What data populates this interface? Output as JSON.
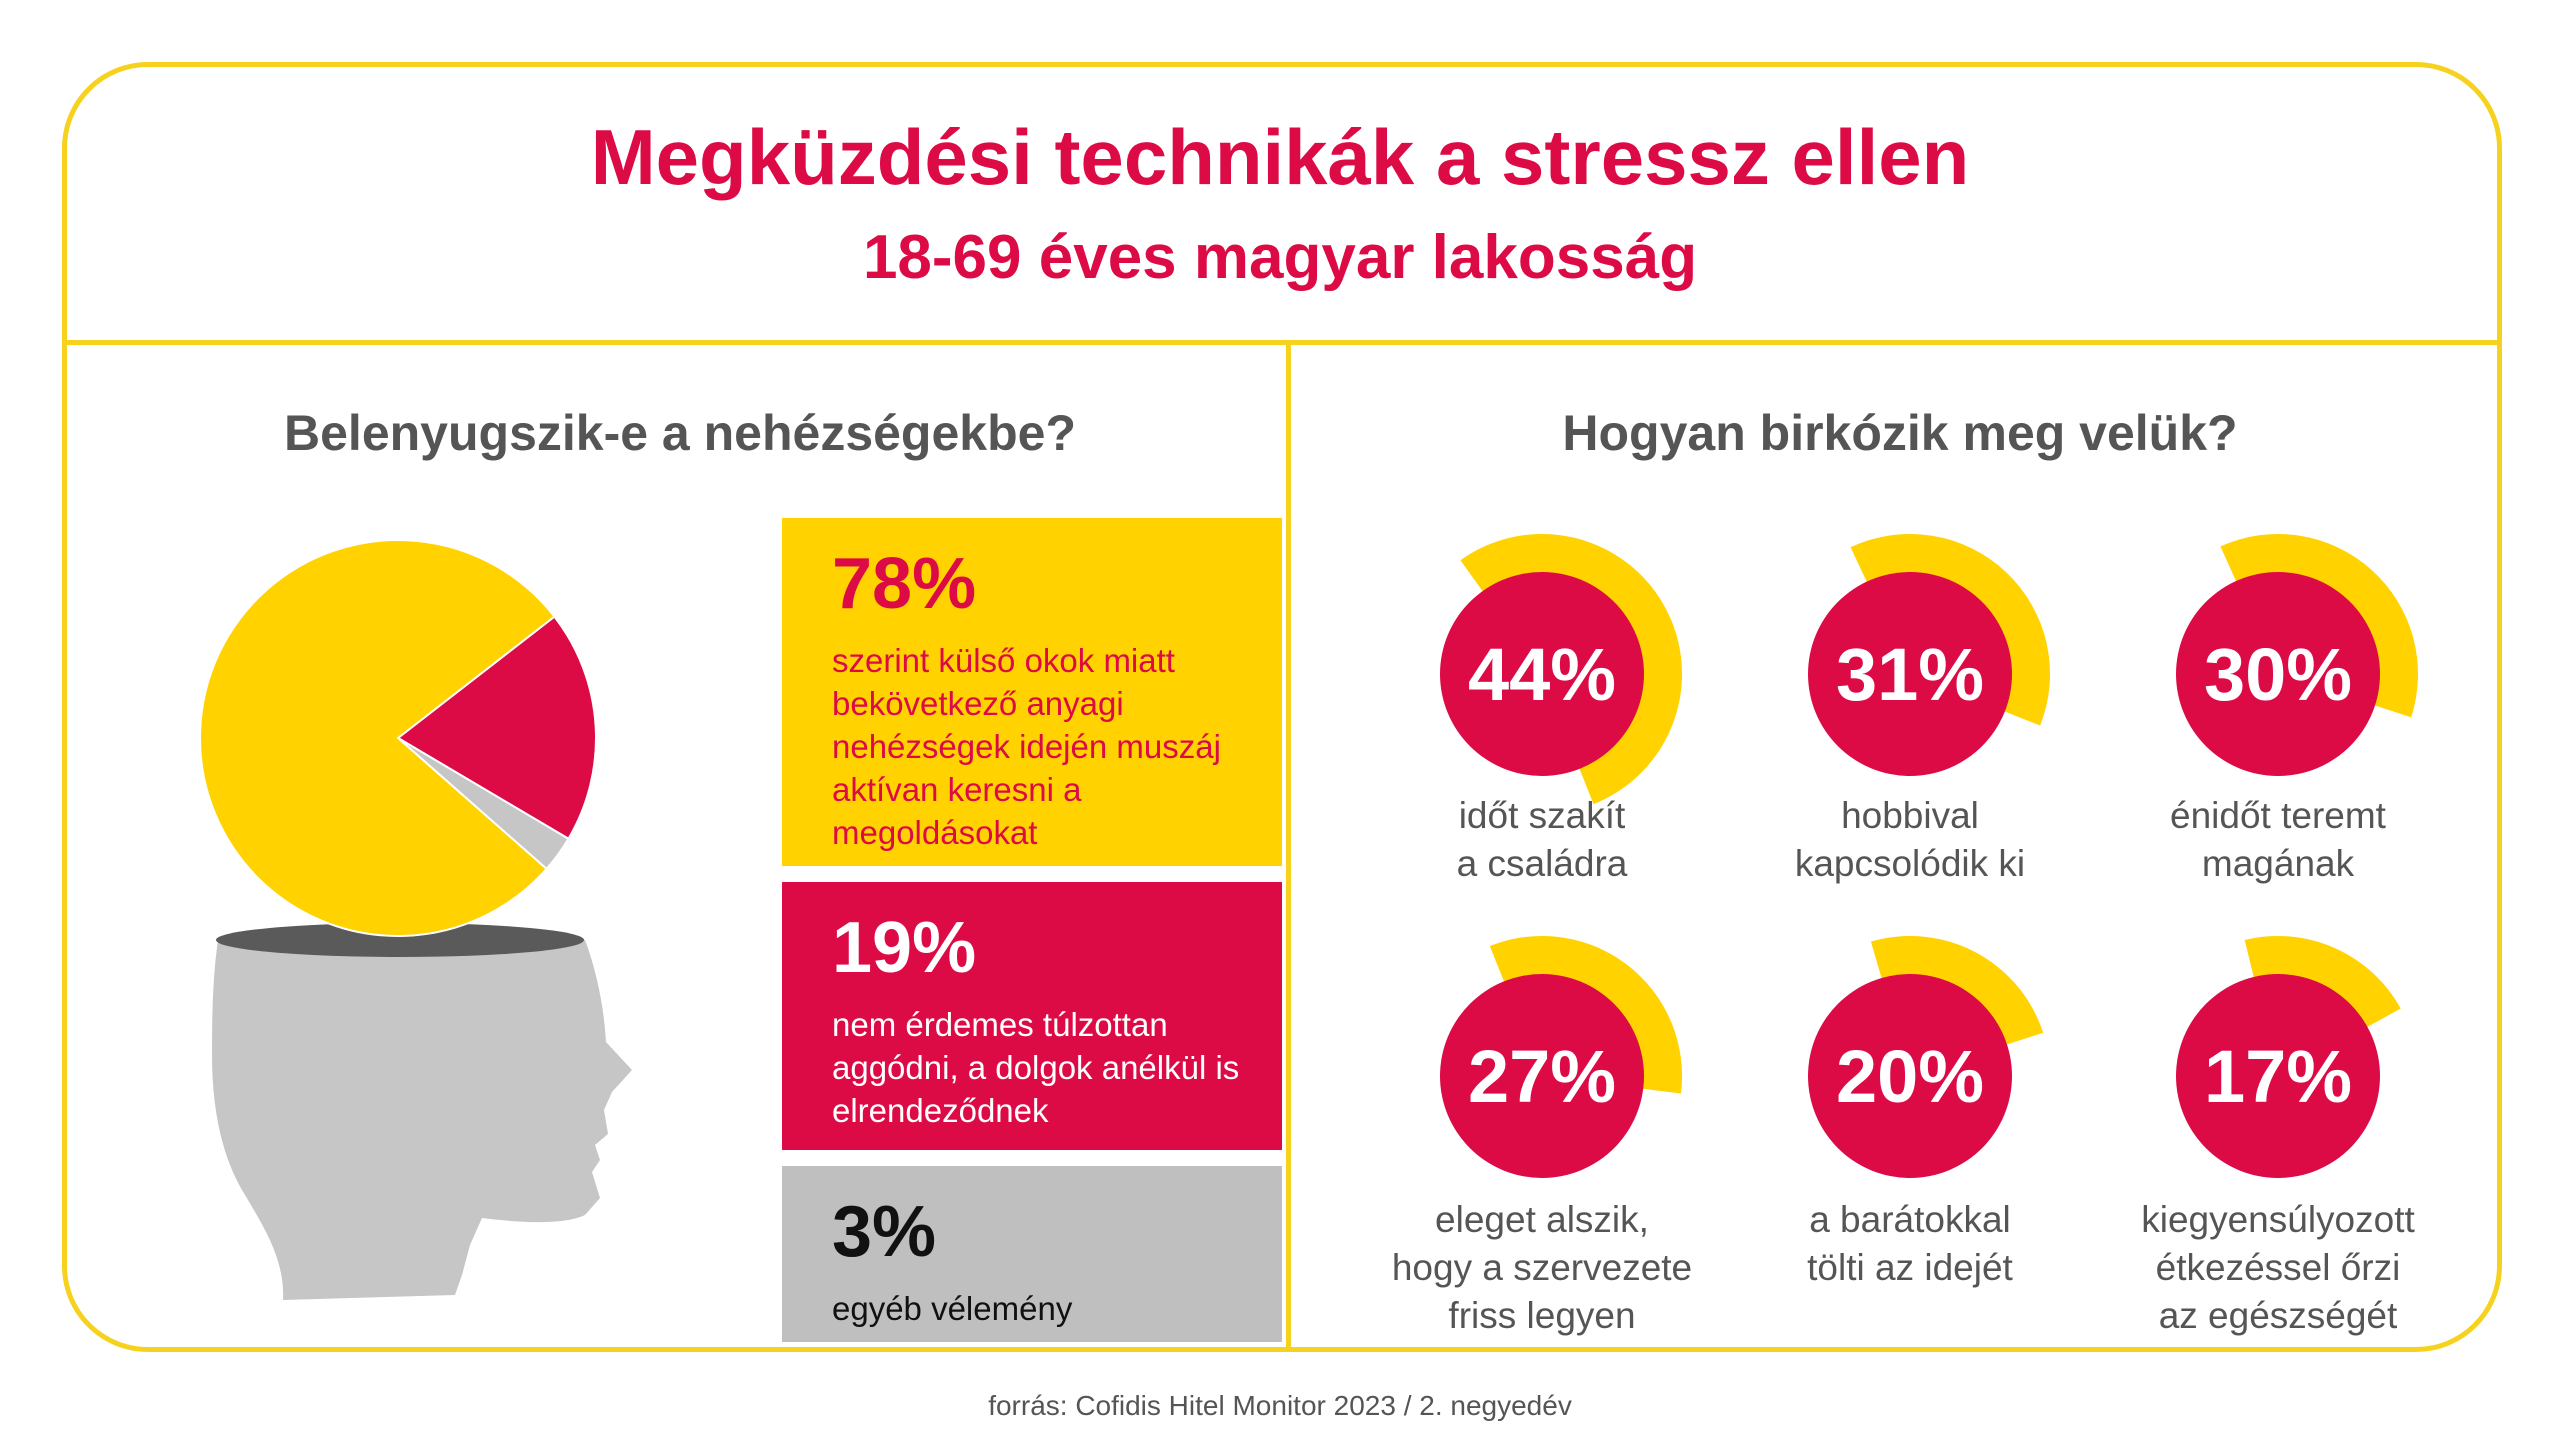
{
  "title": "Megküzdési technikák a stressz ellen",
  "subtitle": "18-69 éves magyar lakosság",
  "left": {
    "title": "Belenyugszik-e a nehézségekbe?",
    "items": [
      {
        "pct": "78%",
        "desc": "szerint külső okok miatt bekövetkező anyagi nehézségek idején muszáj aktívan keresni a megoldásokat"
      },
      {
        "pct": "19%",
        "desc": "nem érdemes túlzottan aggódni, a dolgok anélkül is elrendeződnek"
      },
      {
        "pct": "3%",
        "desc": "egyéb vélemény"
      }
    ]
  },
  "right": {
    "title": "Hogyan birkózik meg velük?",
    "items": [
      {
        "pct": "44%",
        "label": "időt szakít\na családra"
      },
      {
        "pct": "31%",
        "label": "hobbival\nkapcsolódik ki"
      },
      {
        "pct": "30%",
        "label": "énidőt teremt\nmagának"
      },
      {
        "pct": "27%",
        "label": "eleget alszik,\nhogy a szervezete\nfriss legyen"
      },
      {
        "pct": "20%",
        "label": "a barátokkal\ntölti az idejét"
      },
      {
        "pct": "17%",
        "label": "kiegyensúlyozott\nétkezéssel őrzi\naz egészségét"
      }
    ]
  },
  "source": "forrás: Cofidis Hitel Monitor 2023 / 2. negyedév",
  "chart_data": [
    {
      "type": "pie",
      "title": "Belenyugszik-e a nehézségekbe?",
      "categories": [
        "szerint külső okok miatt bekövetkező anyagi nehézségek idején muszáj aktívan keresni a megoldásokat",
        "nem érdemes túlzottan aggódni, a dolgok anélkül is elrendeződnek",
        "egyéb vélemény"
      ],
      "values": [
        78,
        19,
        3
      ],
      "colors": [
        "#ffd200",
        "#dc0b46",
        "#c6c6c6"
      ]
    },
    {
      "type": "bar",
      "title": "Hogyan birkózik meg velük?",
      "categories": [
        "időt szakít a családra",
        "hobbival kapcsolódik ki",
        "énidőt teremt magának",
        "eleget alszik, hogy a szervezete friss legyen",
        "a barátokkal tölti az idejét",
        "kiegyensúlyozott étkezéssel őrzi az egészségét"
      ],
      "values": [
        44,
        31,
        30,
        27,
        20,
        17
      ],
      "colors": [
        "#dc0b46",
        "#ffd200"
      ]
    }
  ],
  "colors": {
    "accent": "#dc0b46",
    "yellow": "#ffd200",
    "frame": "#f6d21f",
    "grey": "#bfbfbf",
    "text": "#555555"
  }
}
